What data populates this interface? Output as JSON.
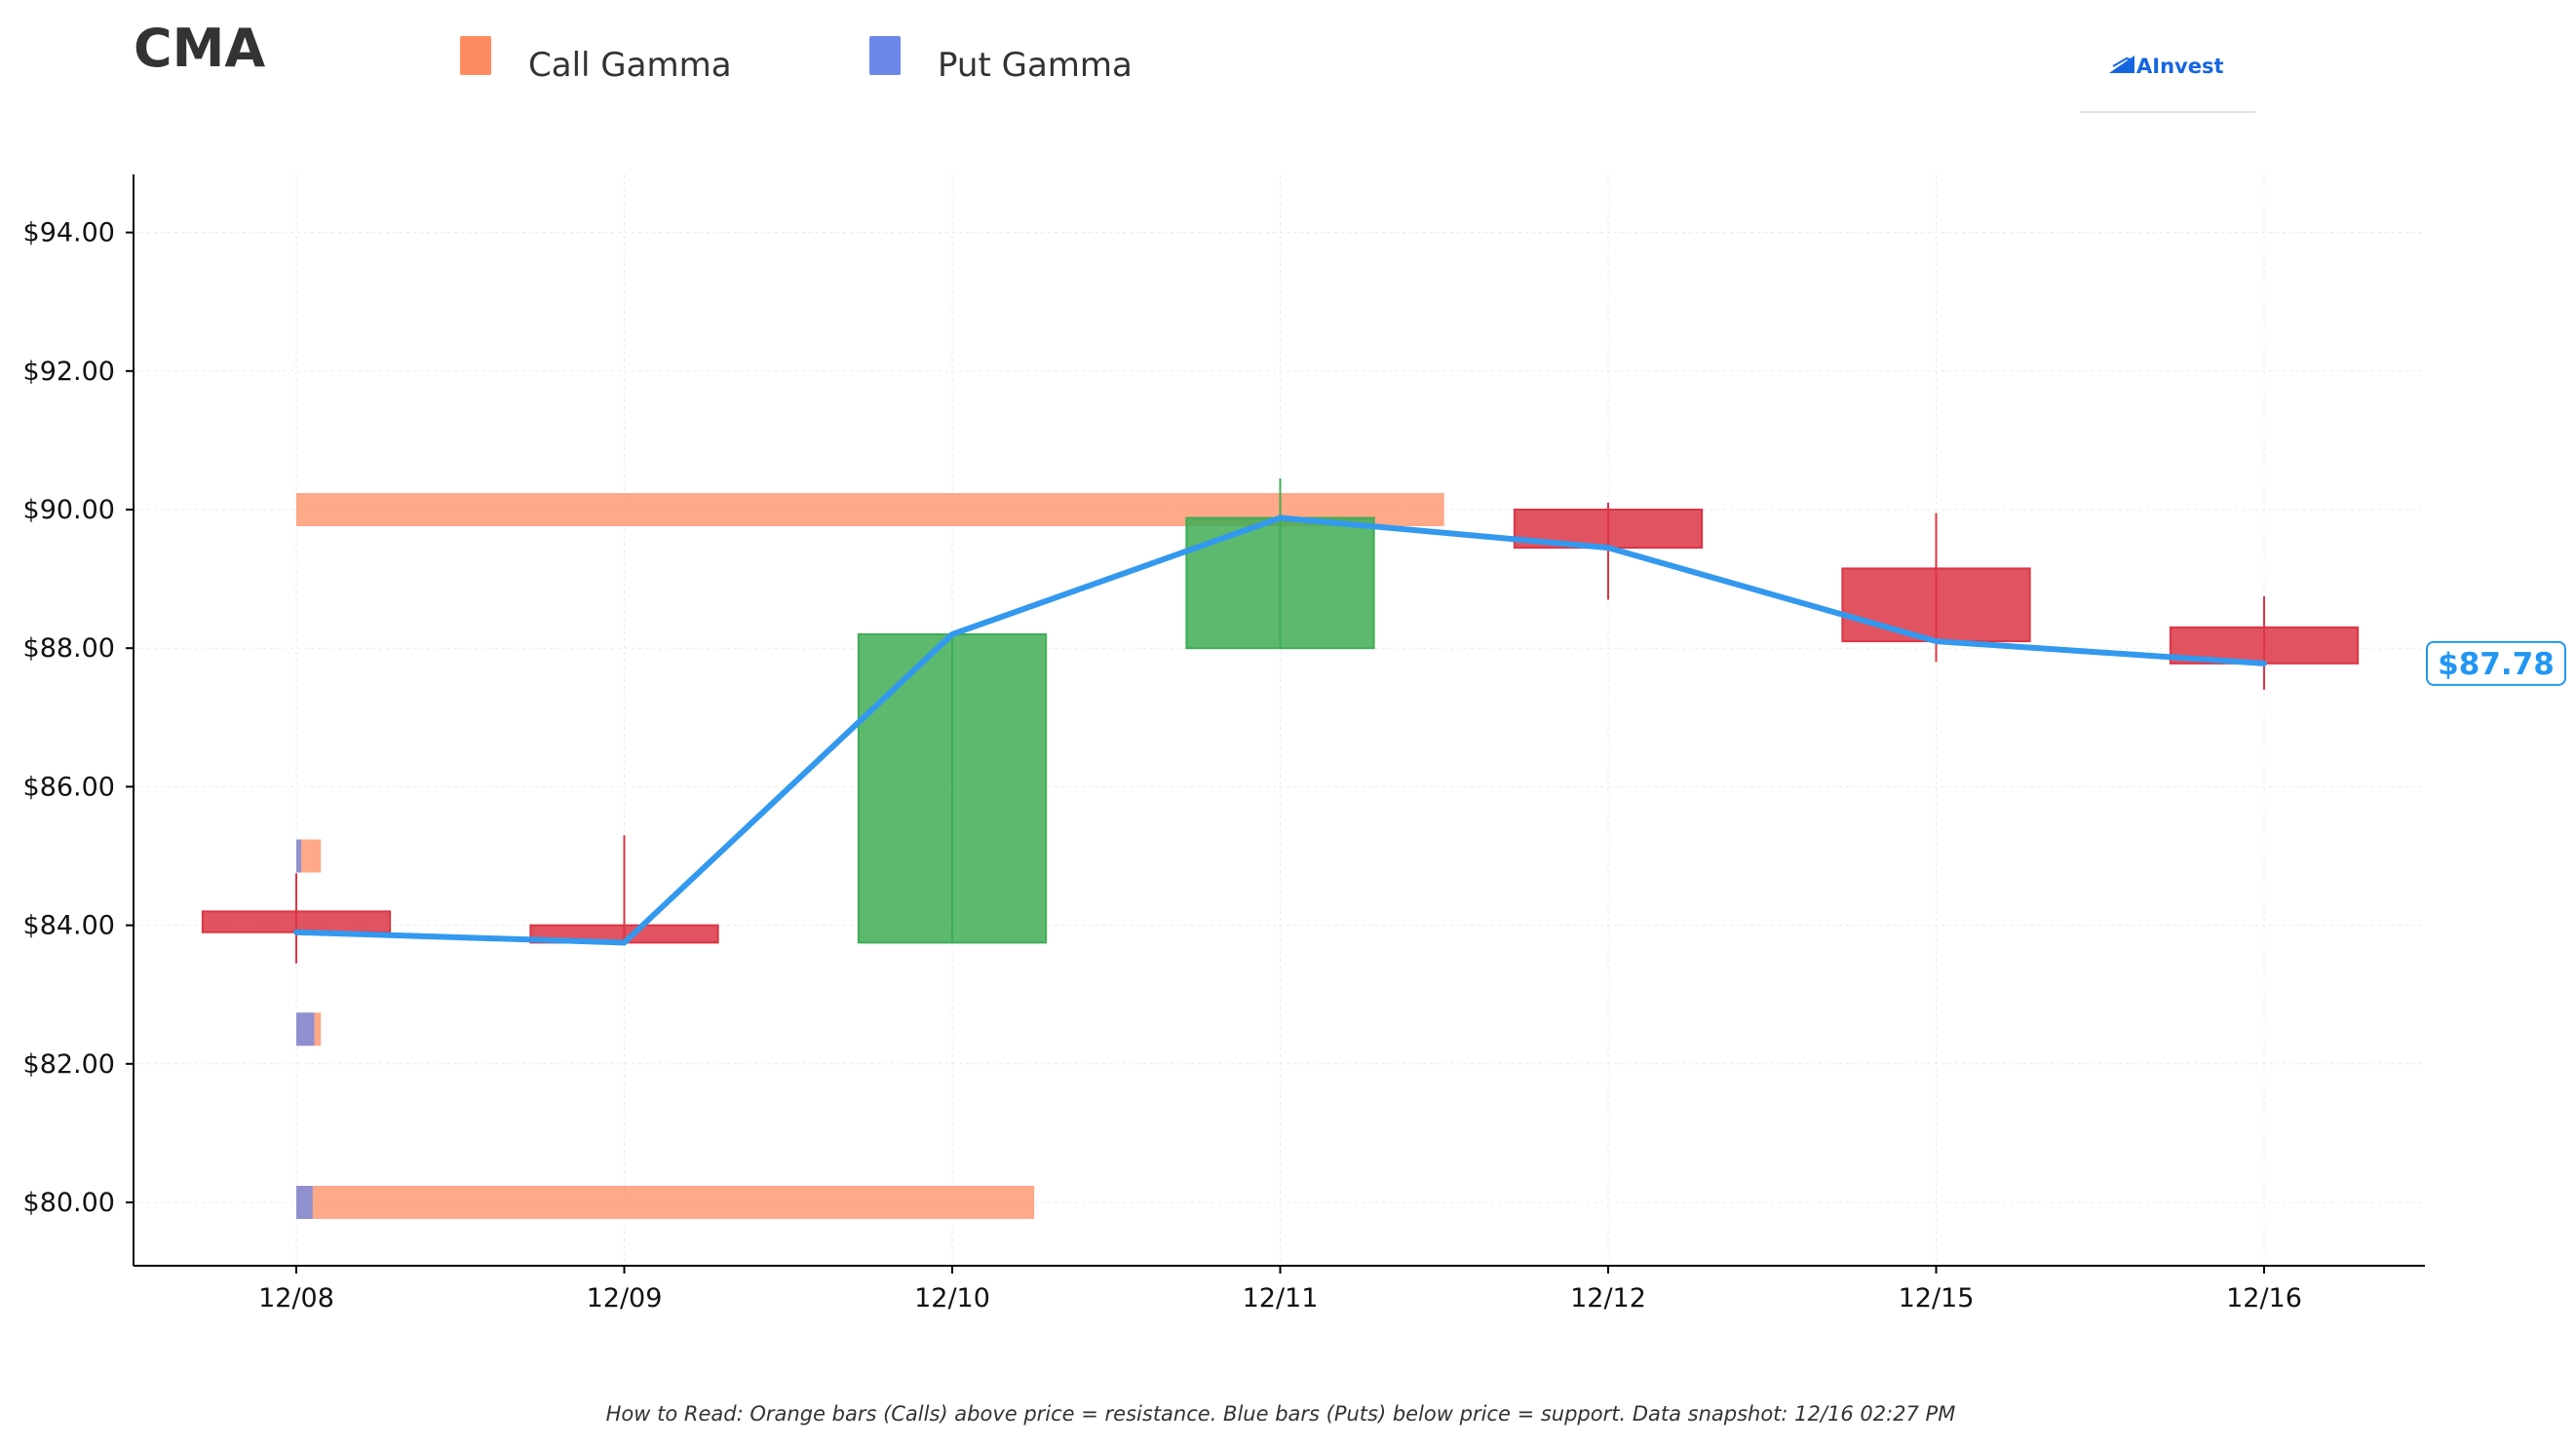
{
  "title": "CMA",
  "legend": [
    {
      "label": "Call Gamma",
      "color": "#ff8c61"
    },
    {
      "label": "Put Gamma",
      "color": "#6b88e8"
    }
  ],
  "logo": {
    "text": "AInvest",
    "color": "#1565e0"
  },
  "footnote": "How to Read: Orange bars (Calls) above price = resistance. Blue bars (Puts) below price = support. Data snapshot: 12/16 02:27 PM",
  "price_tag": {
    "label": "$87.78",
    "value": 87.78,
    "color": "#2196f3"
  },
  "chart_data": {
    "type": "candlestick",
    "categories": [
      "12/08",
      "12/09",
      "12/10",
      "12/11",
      "12/12",
      "12/15",
      "12/16"
    ],
    "ylim": [
      79.1,
      94.9
    ],
    "yticks": [
      80,
      82,
      84,
      86,
      88,
      90,
      92,
      94
    ],
    "ytick_labels": [
      "$80.00",
      "$82.00",
      "$84.00",
      "$86.00",
      "$88.00",
      "$90.00",
      "$92.00",
      "$94.00"
    ],
    "grid": true,
    "colors": {
      "up": "#3fad55",
      "down": "#dc3545",
      "line": "#3399ee",
      "call": "#ff8c61",
      "put": "#6b88e8"
    },
    "candles": [
      {
        "date": "12/08",
        "open": 84.2,
        "high": 84.75,
        "low": 83.45,
        "close": 83.9
      },
      {
        "date": "12/09",
        "open": 84.0,
        "high": 85.3,
        "low": 83.75,
        "close": 83.75
      },
      {
        "date": "12/10",
        "open": 83.75,
        "high": 88.2,
        "low": 83.75,
        "close": 88.2
      },
      {
        "date": "12/11",
        "open": 88.0,
        "high": 90.45,
        "low": 88.0,
        "close": 89.88
      },
      {
        "date": "12/12",
        "open": 90.0,
        "high": 90.1,
        "low": 88.7,
        "close": 89.45
      },
      {
        "date": "12/15",
        "open": 89.15,
        "high": 89.95,
        "low": 87.8,
        "close": 88.1
      },
      {
        "date": "12/16",
        "open": 88.3,
        "high": 88.75,
        "low": 87.4,
        "close": 87.78
      }
    ],
    "close_line": [
      83.9,
      83.75,
      88.2,
      89.88,
      89.45,
      88.1,
      87.78
    ],
    "gamma_levels": [
      {
        "strike": 90.0,
        "call": 3.5,
        "put": 0
      },
      {
        "strike": 85.0,
        "call": 0.075,
        "put": 0.015
      },
      {
        "strike": 82.5,
        "call": 0.075,
        "put": 0.055
      },
      {
        "strike": 80.0,
        "call": 2.25,
        "put": 0.05
      }
    ]
  }
}
